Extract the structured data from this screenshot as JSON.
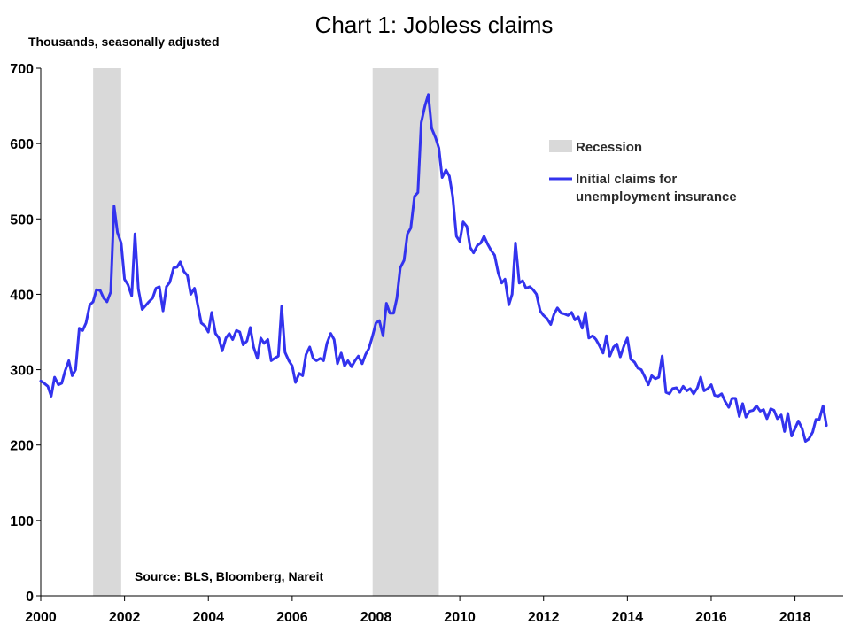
{
  "chart_data": {
    "type": "line",
    "title": "Chart 1: Jobless claims",
    "subtitle": "Thousands, seasonally adjusted",
    "source": "Source: BLS, Bloomberg, Nareit",
    "xlim": [
      2000,
      2019.15
    ],
    "ylim": [
      0,
      700
    ],
    "x_ticks": [
      2000,
      2002,
      2004,
      2006,
      2008,
      2010,
      2012,
      2014,
      2016,
      2018
    ],
    "x_tick_labels": [
      "2000",
      "2002",
      "2004",
      "2006",
      "2008",
      "2010",
      "2012",
      "2014",
      "2016",
      "2018"
    ],
    "y_ticks": [
      0,
      100,
      200,
      300,
      400,
      500,
      600,
      700
    ],
    "y_tick_labels": [
      "0",
      "100",
      "200",
      "300",
      "400",
      "500",
      "600",
      "700"
    ],
    "grid": false,
    "legend_position": "top-right",
    "legend": [
      {
        "label": "Recession",
        "kind": "band",
        "color": "#d9d9d9"
      },
      {
        "label": "Initial claims for\nunemployment insurance",
        "kind": "line",
        "color": "#3333ee"
      }
    ],
    "recessions": [
      {
        "start": 2001.25,
        "end": 2001.92
      },
      {
        "start": 2007.92,
        "end": 2009.5
      }
    ],
    "series": [
      {
        "name": "Initial claims for unemployment insurance",
        "color": "#3333ee",
        "points": [
          [
            2000.0,
            285
          ],
          [
            2000.08,
            282
          ],
          [
            2000.17,
            278
          ],
          [
            2000.25,
            265
          ],
          [
            2000.33,
            290
          ],
          [
            2000.42,
            280
          ],
          [
            2000.5,
            282
          ],
          [
            2000.58,
            298
          ],
          [
            2000.67,
            312
          ],
          [
            2000.75,
            292
          ],
          [
            2000.83,
            300
          ],
          [
            2000.92,
            355
          ],
          [
            2001.0,
            352
          ],
          [
            2001.08,
            362
          ],
          [
            2001.17,
            386
          ],
          [
            2001.25,
            390
          ],
          [
            2001.33,
            406
          ],
          [
            2001.42,
            405
          ],
          [
            2001.5,
            395
          ],
          [
            2001.58,
            390
          ],
          [
            2001.67,
            403
          ],
          [
            2001.75,
            517
          ],
          [
            2001.83,
            482
          ],
          [
            2001.92,
            468
          ],
          [
            2002.0,
            420
          ],
          [
            2002.08,
            413
          ],
          [
            2002.17,
            398
          ],
          [
            2002.25,
            480
          ],
          [
            2002.33,
            407
          ],
          [
            2002.42,
            380
          ],
          [
            2002.5,
            385
          ],
          [
            2002.58,
            390
          ],
          [
            2002.67,
            395
          ],
          [
            2002.75,
            408
          ],
          [
            2002.83,
            410
          ],
          [
            2002.92,
            378
          ],
          [
            2003.0,
            410
          ],
          [
            2003.08,
            416
          ],
          [
            2003.17,
            435
          ],
          [
            2003.25,
            436
          ],
          [
            2003.33,
            443
          ],
          [
            2003.42,
            430
          ],
          [
            2003.5,
            425
          ],
          [
            2003.58,
            400
          ],
          [
            2003.67,
            408
          ],
          [
            2003.75,
            385
          ],
          [
            2003.83,
            362
          ],
          [
            2003.92,
            358
          ],
          [
            2004.0,
            350
          ],
          [
            2004.08,
            376
          ],
          [
            2004.17,
            348
          ],
          [
            2004.25,
            342
          ],
          [
            2004.33,
            325
          ],
          [
            2004.42,
            342
          ],
          [
            2004.5,
            348
          ],
          [
            2004.58,
            340
          ],
          [
            2004.67,
            352
          ],
          [
            2004.75,
            350
          ],
          [
            2004.83,
            333
          ],
          [
            2004.92,
            338
          ],
          [
            2005.0,
            356
          ],
          [
            2005.08,
            330
          ],
          [
            2005.17,
            315
          ],
          [
            2005.25,
            342
          ],
          [
            2005.33,
            335
          ],
          [
            2005.42,
            340
          ],
          [
            2005.5,
            312
          ],
          [
            2005.58,
            315
          ],
          [
            2005.67,
            318
          ],
          [
            2005.75,
            384
          ],
          [
            2005.83,
            323
          ],
          [
            2005.92,
            312
          ],
          [
            2006.0,
            305
          ],
          [
            2006.08,
            283
          ],
          [
            2006.17,
            295
          ],
          [
            2006.25,
            292
          ],
          [
            2006.33,
            320
          ],
          [
            2006.42,
            330
          ],
          [
            2006.5,
            315
          ],
          [
            2006.58,
            312
          ],
          [
            2006.67,
            315
          ],
          [
            2006.75,
            312
          ],
          [
            2006.83,
            335
          ],
          [
            2006.92,
            348
          ],
          [
            2007.0,
            340
          ],
          [
            2007.08,
            308
          ],
          [
            2007.17,
            322
          ],
          [
            2007.25,
            305
          ],
          [
            2007.33,
            312
          ],
          [
            2007.42,
            304
          ],
          [
            2007.5,
            312
          ],
          [
            2007.58,
            318
          ],
          [
            2007.67,
            308
          ],
          [
            2007.75,
            320
          ],
          [
            2007.83,
            328
          ],
          [
            2007.92,
            345
          ],
          [
            2008.0,
            362
          ],
          [
            2008.08,
            365
          ],
          [
            2008.17,
            345
          ],
          [
            2008.25,
            388
          ],
          [
            2008.33,
            375
          ],
          [
            2008.42,
            375
          ],
          [
            2008.5,
            395
          ],
          [
            2008.58,
            435
          ],
          [
            2008.67,
            445
          ],
          [
            2008.75,
            480
          ],
          [
            2008.83,
            488
          ],
          [
            2008.92,
            530
          ],
          [
            2009.0,
            535
          ],
          [
            2009.08,
            628
          ],
          [
            2009.17,
            650
          ],
          [
            2009.25,
            665
          ],
          [
            2009.33,
            620
          ],
          [
            2009.42,
            608
          ],
          [
            2009.5,
            594
          ],
          [
            2009.58,
            555
          ],
          [
            2009.67,
            565
          ],
          [
            2009.75,
            557
          ],
          [
            2009.83,
            530
          ],
          [
            2009.92,
            477
          ],
          [
            2010.0,
            470
          ],
          [
            2010.08,
            496
          ],
          [
            2010.17,
            490
          ],
          [
            2010.25,
            462
          ],
          [
            2010.33,
            455
          ],
          [
            2010.42,
            465
          ],
          [
            2010.5,
            468
          ],
          [
            2010.58,
            477
          ],
          [
            2010.67,
            466
          ],
          [
            2010.75,
            458
          ],
          [
            2010.83,
            452
          ],
          [
            2010.92,
            428
          ],
          [
            2011.0,
            415
          ],
          [
            2011.08,
            420
          ],
          [
            2011.17,
            386
          ],
          [
            2011.25,
            400
          ],
          [
            2011.33,
            468
          ],
          [
            2011.42,
            415
          ],
          [
            2011.5,
            418
          ],
          [
            2011.58,
            408
          ],
          [
            2011.67,
            410
          ],
          [
            2011.75,
            406
          ],
          [
            2011.83,
            400
          ],
          [
            2011.92,
            378
          ],
          [
            2012.0,
            372
          ],
          [
            2012.08,
            368
          ],
          [
            2012.17,
            360
          ],
          [
            2012.25,
            374
          ],
          [
            2012.33,
            382
          ],
          [
            2012.42,
            375
          ],
          [
            2012.5,
            374
          ],
          [
            2012.58,
            372
          ],
          [
            2012.67,
            376
          ],
          [
            2012.75,
            366
          ],
          [
            2012.83,
            370
          ],
          [
            2012.92,
            355
          ],
          [
            2013.0,
            376
          ],
          [
            2013.08,
            342
          ],
          [
            2013.17,
            345
          ],
          [
            2013.25,
            340
          ],
          [
            2013.33,
            332
          ],
          [
            2013.42,
            322
          ],
          [
            2013.5,
            345
          ],
          [
            2013.58,
            318
          ],
          [
            2013.67,
            330
          ],
          [
            2013.75,
            334
          ],
          [
            2013.83,
            317
          ],
          [
            2013.92,
            332
          ],
          [
            2014.0,
            342
          ],
          [
            2014.08,
            314
          ],
          [
            2014.17,
            310
          ],
          [
            2014.25,
            302
          ],
          [
            2014.33,
            300
          ],
          [
            2014.42,
            290
          ],
          [
            2014.5,
            280
          ],
          [
            2014.58,
            292
          ],
          [
            2014.67,
            288
          ],
          [
            2014.75,
            290
          ],
          [
            2014.83,
            318
          ],
          [
            2014.92,
            270
          ],
          [
            2015.0,
            268
          ],
          [
            2015.08,
            275
          ],
          [
            2015.17,
            276
          ],
          [
            2015.25,
            270
          ],
          [
            2015.33,
            278
          ],
          [
            2015.42,
            272
          ],
          [
            2015.5,
            275
          ],
          [
            2015.58,
            268
          ],
          [
            2015.67,
            276
          ],
          [
            2015.75,
            290
          ],
          [
            2015.83,
            272
          ],
          [
            2015.92,
            275
          ],
          [
            2016.0,
            280
          ],
          [
            2016.08,
            266
          ],
          [
            2016.17,
            265
          ],
          [
            2016.25,
            268
          ],
          [
            2016.33,
            258
          ],
          [
            2016.42,
            250
          ],
          [
            2016.5,
            262
          ],
          [
            2016.58,
            262
          ],
          [
            2016.67,
            238
          ],
          [
            2016.75,
            255
          ],
          [
            2016.83,
            237
          ],
          [
            2016.92,
            245
          ],
          [
            2017.0,
            246
          ],
          [
            2017.08,
            252
          ],
          [
            2017.17,
            245
          ],
          [
            2017.25,
            247
          ],
          [
            2017.33,
            235
          ],
          [
            2017.42,
            248
          ],
          [
            2017.5,
            246
          ],
          [
            2017.58,
            235
          ],
          [
            2017.67,
            240
          ],
          [
            2017.75,
            218
          ],
          [
            2017.83,
            242
          ],
          [
            2017.92,
            212
          ],
          [
            2018.0,
            222
          ],
          [
            2018.08,
            232
          ],
          [
            2018.17,
            222
          ],
          [
            2018.25,
            205
          ],
          [
            2018.33,
            208
          ],
          [
            2018.42,
            217
          ],
          [
            2018.5,
            234
          ],
          [
            2018.58,
            234
          ],
          [
            2018.67,
            252
          ],
          [
            2018.75,
            226
          ]
        ]
      }
    ]
  }
}
